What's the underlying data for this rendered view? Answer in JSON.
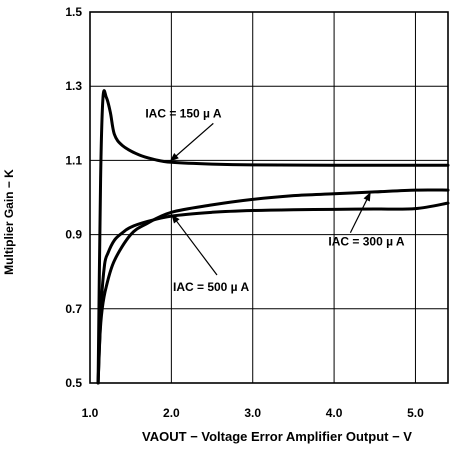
{
  "chart_data": {
    "type": "line",
    "xlabel": "VAOUT − Voltage Error Amplifier Output − V",
    "ylabel": "Multiplier Gain − K",
    "xlim": [
      1.0,
      5.4
    ],
    "ylim": [
      0.5,
      1.5
    ],
    "xticks": [
      "1.0",
      "2.0",
      "3.0",
      "4.0",
      "5.0"
    ],
    "yticks": [
      "0.5",
      "0.7",
      "0.9",
      "1.1",
      "1.3",
      "1.5"
    ],
    "xtick_values": [
      1.0,
      2.0,
      3.0,
      4.0,
      5.0
    ],
    "ytick_values": [
      0.5,
      0.7,
      0.9,
      1.1,
      1.3,
      1.5
    ],
    "grid": true,
    "series": [
      {
        "name": "IAC = 150 µ A",
        "x": [
          1.1,
          1.13,
          1.16,
          1.2,
          1.25,
          1.3,
          1.4,
          1.6,
          1.8,
          2.0,
          2.5,
          3.0,
          4.0,
          5.0,
          5.4
        ],
        "y": [
          0.5,
          1.05,
          1.27,
          1.27,
          1.23,
          1.17,
          1.14,
          1.115,
          1.102,
          1.095,
          1.09,
          1.088,
          1.087,
          1.087,
          1.087
        ]
      },
      {
        "name": "IAC = 300 µ A",
        "x": [
          1.1,
          1.14,
          1.18,
          1.22,
          1.3,
          1.4,
          1.5,
          1.7,
          2.0,
          2.5,
          3.0,
          3.5,
          4.0,
          4.5,
          5.0,
          5.4
        ],
        "y": [
          0.5,
          0.72,
          0.82,
          0.85,
          0.885,
          0.905,
          0.92,
          0.935,
          0.95,
          0.96,
          0.965,
          0.967,
          0.968,
          0.969,
          0.97,
          0.985
        ]
      },
      {
        "name": "IAC = 500 µ A",
        "x": [
          1.1,
          1.12,
          1.15,
          1.2,
          1.3,
          1.5,
          1.7,
          2.0,
          2.5,
          3.0,
          3.5,
          4.0,
          4.5,
          5.0,
          5.4
        ],
        "y": [
          0.5,
          0.62,
          0.7,
          0.76,
          0.83,
          0.9,
          0.93,
          0.96,
          0.98,
          0.995,
          1.005,
          1.01,
          1.015,
          1.02,
          1.02
        ]
      }
    ],
    "annotations": [
      {
        "text": "IAC = 150  µ A",
        "label_at": [
          1.68,
          1.216
        ],
        "points_to": [
          1.98,
          1.097
        ]
      },
      {
        "text": "IAC = 300 µ A",
        "label_at": [
          3.93,
          0.87
        ],
        "points_to": [
          4.45,
          1.015
        ]
      },
      {
        "text": "IAC = 500  µ A",
        "label_at": [
          2.02,
          0.748
        ],
        "points_to": [
          2.0,
          0.955
        ]
      }
    ]
  }
}
